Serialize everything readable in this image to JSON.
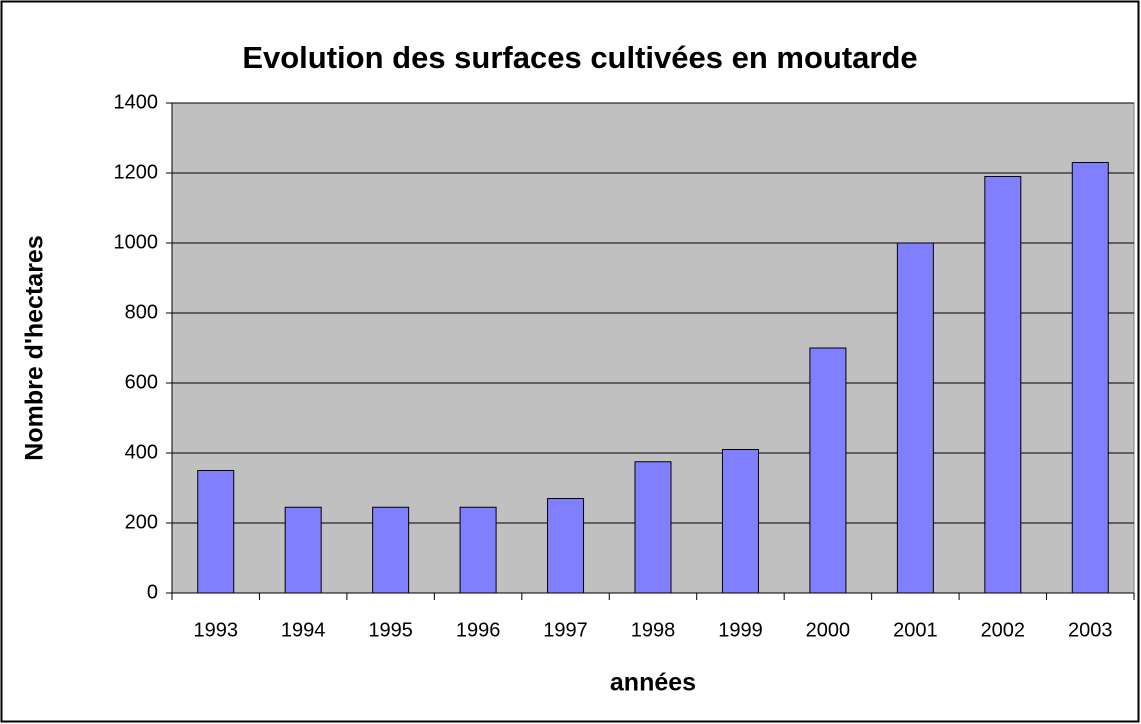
{
  "chart_data": {
    "type": "bar",
    "title": "Evolution des surfaces cultivées en moutarde",
    "x_label": "années",
    "y_label": "Nombre d'hectares",
    "categories": [
      "1993",
      "1994",
      "1995",
      "1996",
      "1997",
      "1998",
      "1999",
      "2000",
      "2001",
      "2002",
      "2003"
    ],
    "values": [
      350,
      245,
      245,
      245,
      270,
      375,
      410,
      700,
      1000,
      1190,
      1230
    ],
    "color": "#8080ff",
    "plot_background": "#c0c0c0",
    "ylim": [
      0,
      1400
    ],
    "yticks": [
      0,
      200,
      400,
      600,
      800,
      1000,
      1200,
      1400
    ],
    "grid": true
  }
}
